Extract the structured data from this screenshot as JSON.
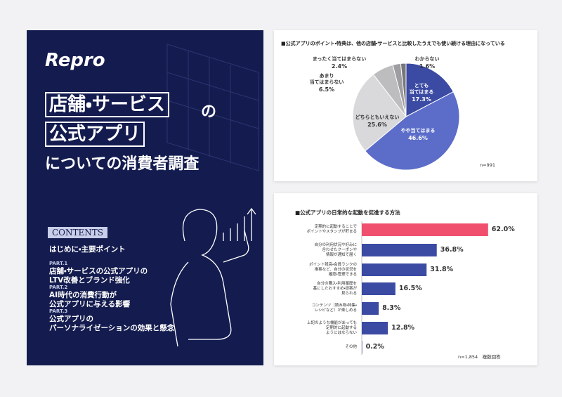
{
  "cover": {
    "logo": "Repro",
    "title_lines": [
      "店舗・サービス",
      "の",
      "公式アプリ",
      "についての消費者調査"
    ],
    "contents_heading": "CONTENTS",
    "contents": [
      {
        "part": null,
        "text": "はじめに・主要ポイント"
      },
      {
        "part": "PART.1",
        "text": "店舗・サービスの公式アプリの\nLTV改善とブランド強化"
      },
      {
        "part": "PART.2",
        "text": "AI時代の消費行動が\n公式アプリに与える影響"
      },
      {
        "part": "PART.3",
        "text": "公式アプリの\nパーソナライゼーションの効果と懸念"
      }
    ]
  },
  "chart_data": [
    {
      "type": "pie",
      "title": "■公式アプリのポイント・特典は、他の店舗・サービスと比較したうえでも使い続ける理由になっている",
      "categories": [
        "とても\n当てはまる",
        "やや当てはまる",
        "どちらともいえない",
        "あまり\n当てはまらない",
        "まったく当てはまらない",
        "わからない"
      ],
      "values": [
        17.3,
        46.6,
        25.6,
        6.5,
        2.4,
        1.6
      ],
      "value_labels": [
        "17.3%",
        "46.6%",
        "25.6%",
        "6.5%",
        "2.4%",
        "1.6%"
      ],
      "colors": [
        "#3b4aa3",
        "#5b6dc9",
        "#d9d9dc",
        "#bdbdc0",
        "#9d9da2",
        "#77777c"
      ],
      "note": "n=991"
    },
    {
      "type": "hbar",
      "title": "■公式アプリの日常的な起動を促進する方法",
      "categories": [
        "定期的に起動することで\nポイントやスタンプが貯まる",
        "自分の利用状況や好みに\n合わせたクーポンや\n情報が通知で届く",
        "ポイント残高・会員ランクの\n推移など、自分の状況を\n確認・管理できる",
        "自分の購入・利用履歴を\n基にしたおすすめ・提案が\n見られる",
        "コンテンツ（読み物・特集・\nレシピなど）が楽しめる",
        "上記のような機能があっても\n定期的に起動する\nようにはならない",
        "その他"
      ],
      "values": [
        62.0,
        36.8,
        31.8,
        16.5,
        8.3,
        12.8,
        0.2
      ],
      "value_labels": [
        "62.0%",
        "36.8%",
        "31.8%",
        "16.5%",
        "8.3%",
        "12.8%",
        "0.2%"
      ],
      "colors": [
        "#f0506e",
        "#3b4aa3",
        "#3b4aa3",
        "#3b4aa3",
        "#3b4aa3",
        "#3b4aa3",
        "#3b4aa3"
      ],
      "note": "n=1,854　複数回答"
    }
  ]
}
